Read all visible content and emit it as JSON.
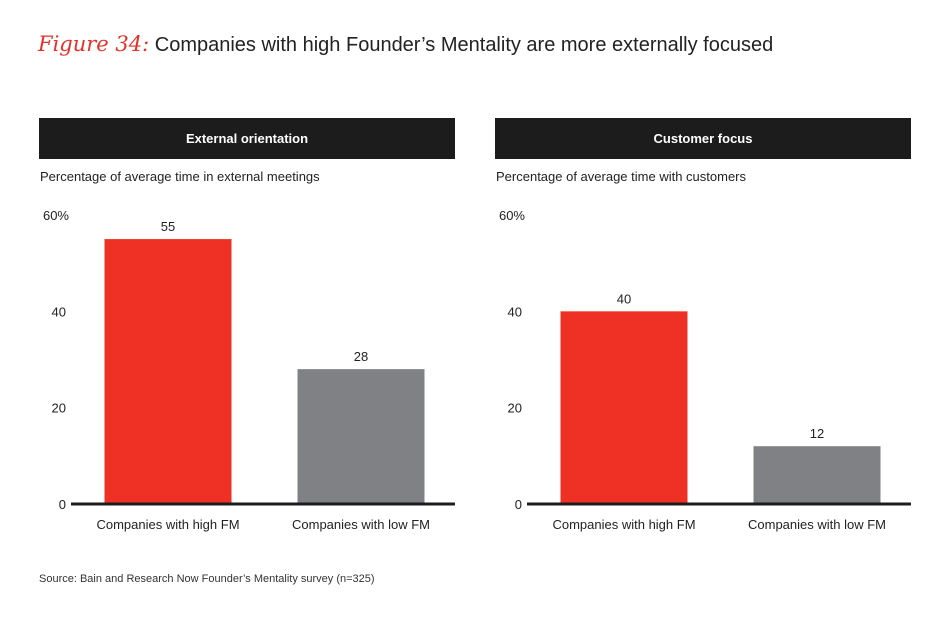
{
  "figure_label": "Figure 34:",
  "figure_title": "Companies with high Founder’s Mentality are more externally focused",
  "source": "Source: Bain and Research Now Founder’s Mentality survey (n=325)",
  "colors": {
    "high": "#ee3124",
    "low": "#808184",
    "header_bg": "#1c1c1c",
    "accent": "#e8302a"
  },
  "chart_data": [
    {
      "type": "bar",
      "title": "External orientation",
      "ylabel": "Percentage of average time in external meetings",
      "categories": [
        "Companies with high FM",
        "Companies with low FM"
      ],
      "values": [
        55,
        28
      ],
      "value_labels": [
        "55",
        "28"
      ],
      "ylim": [
        0,
        60
      ],
      "yticks": [
        0,
        20,
        40,
        60
      ],
      "ytick_labels": [
        "0",
        "20",
        "40",
        "60%"
      ]
    },
    {
      "type": "bar",
      "title": "Customer focus",
      "ylabel": "Percentage of average time with customers",
      "categories": [
        "Companies with high FM",
        "Companies with low FM"
      ],
      "values": [
        40,
        12
      ],
      "value_labels": [
        "40",
        "12"
      ],
      "ylim": [
        0,
        60
      ],
      "yticks": [
        0,
        20,
        40,
        60
      ],
      "ytick_labels": [
        "0",
        "20",
        "40",
        "60%"
      ]
    }
  ]
}
